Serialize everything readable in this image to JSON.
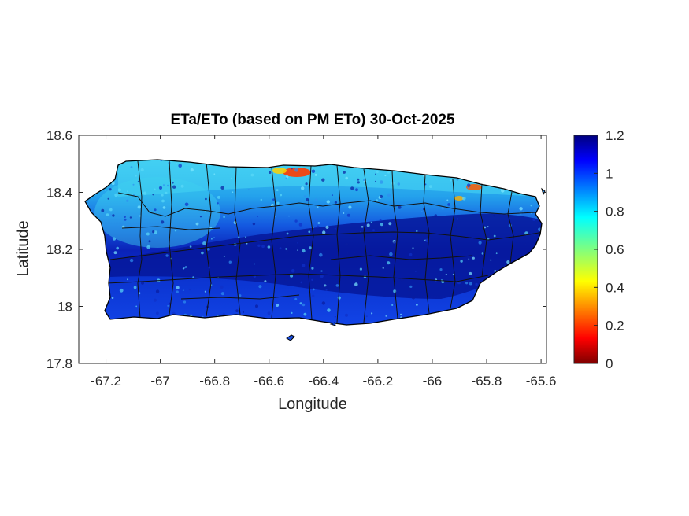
{
  "map": {
    "title": "ETa/ETo (based on PM ETo) 30-Oct-2025",
    "xlabel": "Longitude",
    "ylabel": "Latitude",
    "xlim": [
      -67.3,
      -65.58
    ],
    "ylim": [
      17.8,
      18.6
    ],
    "xticks": [
      "-67.2",
      "-67",
      "-66.8",
      "-66.6",
      "-66.4",
      "-66.2",
      "-66",
      "-65.8",
      "-65.6"
    ],
    "xtick_values": [
      -67.2,
      -67.0,
      -66.8,
      -66.6,
      -66.4,
      -66.2,
      -66.0,
      -65.8,
      -65.6
    ],
    "yticks": [
      "18.6",
      "18.4",
      "18.2",
      "18",
      "17.8"
    ],
    "ytick_values": [
      18.6,
      18.4,
      18.2,
      18.0,
      17.8
    ],
    "region": "Puerto Rico municipalities"
  },
  "colorbar": {
    "colormap": "jet",
    "ticks": [
      "1.2",
      "1",
      "0.8",
      "0.6",
      "0.4",
      "0.2",
      "0"
    ],
    "tick_values": [
      1.2,
      1.0,
      0.8,
      0.6,
      0.4,
      0.2,
      0.0
    ],
    "range": [
      0,
      1.2
    ],
    "colors": [
      "#7f0000",
      "#ff0000",
      "#ffff00",
      "#00ffff",
      "#0000ff",
      "#00007f"
    ]
  }
}
